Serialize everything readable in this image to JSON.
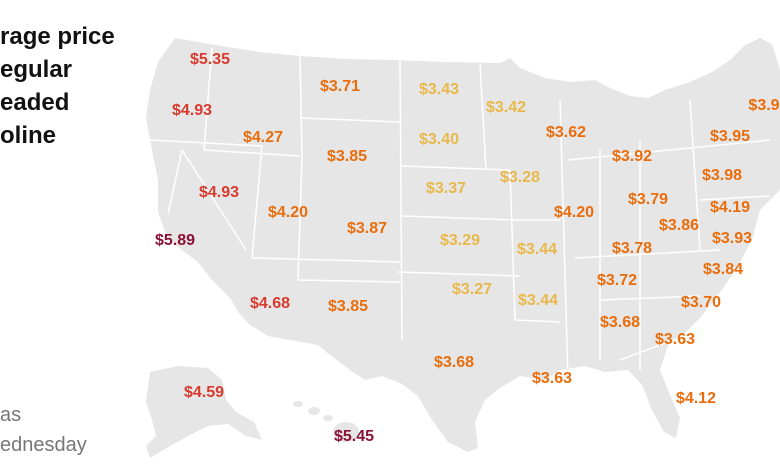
{
  "title_lines": "rage price\negular\neaded\noline",
  "note_lines": "as\nednesday",
  "colors": {
    "land": "#e6e6e6",
    "border": "#ffffff",
    "tier_yellow": "#e8b84a",
    "tier_orange": "#ea6d0c",
    "tier_red": "#d83b2e",
    "tier_darkred": "#8b1237"
  },
  "prices": [
    {
      "label": "$5.35",
      "tier": "red"
    },
    {
      "label": "$4.93",
      "tier": "red"
    },
    {
      "label": "$4.27",
      "tier": "orange"
    },
    {
      "label": "$3.71",
      "tier": "orange"
    },
    {
      "label": "$3.43",
      "tier": "yellow"
    },
    {
      "label": "$3.42",
      "tier": "yellow"
    },
    {
      "label": "$3.40",
      "tier": "yellow"
    },
    {
      "label": "$3.85",
      "tier": "orange"
    },
    {
      "label": "$3.62",
      "tier": "orange"
    },
    {
      "label": "$3.92",
      "tier": "orange"
    },
    {
      "label": "$3.95",
      "tier": "orange"
    },
    {
      "label": "$3.9",
      "tier": "orange"
    },
    {
      "label": "$4.93",
      "tier": "red"
    },
    {
      "label": "$4.20",
      "tier": "orange"
    },
    {
      "label": "$3.37",
      "tier": "yellow"
    },
    {
      "label": "$3.28",
      "tier": "yellow"
    },
    {
      "label": "$3.79",
      "tier": "orange"
    },
    {
      "label": "$3.98",
      "tier": "orange"
    },
    {
      "label": "$5.89",
      "tier": "darkred"
    },
    {
      "label": "$3.87",
      "tier": "orange"
    },
    {
      "label": "$4.20",
      "tier": "orange"
    },
    {
      "label": "$3.86",
      "tier": "orange"
    },
    {
      "label": "$4.19",
      "tier": "orange"
    },
    {
      "label": "$3.29",
      "tier": "yellow"
    },
    {
      "label": "$3.44",
      "tier": "yellow"
    },
    {
      "label": "$3.78",
      "tier": "orange"
    },
    {
      "label": "$3.93",
      "tier": "orange"
    },
    {
      "label": "$3.72",
      "tier": "orange"
    },
    {
      "label": "$3.84",
      "tier": "orange"
    },
    {
      "label": "$4.68",
      "tier": "red"
    },
    {
      "label": "$3.85",
      "tier": "orange"
    },
    {
      "label": "$3.27",
      "tier": "yellow"
    },
    {
      "label": "$3.44",
      "tier": "yellow"
    },
    {
      "label": "$3.70",
      "tier": "orange"
    },
    {
      "label": "$3.68",
      "tier": "orange"
    },
    {
      "label": "$3.63",
      "tier": "orange"
    },
    {
      "label": "$3.68",
      "tier": "orange"
    },
    {
      "label": "$3.63",
      "tier": "orange"
    },
    {
      "label": "$4.12",
      "tier": "orange"
    },
    {
      "label": "$4.59",
      "tier": "red"
    },
    {
      "label": "$5.45",
      "tier": "darkred"
    }
  ]
}
